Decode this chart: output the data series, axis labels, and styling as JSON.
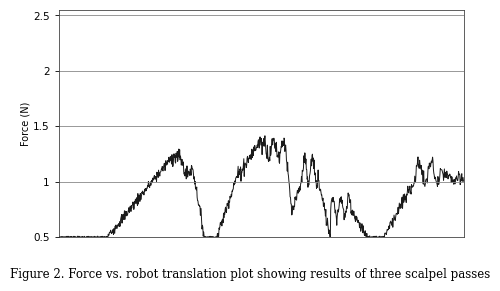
{
  "title": "Figure 2. Force vs. robot translation plot showing results of three scalpel passes",
  "ylabel": "Force (N)",
  "ylim": [
    0.5,
    2.55
  ],
  "yticks": [
    0.5,
    1.0,
    1.5,
    2.0,
    2.5
  ],
  "ytick_labels": [
    "0.5",
    "1",
    "1.5",
    "2",
    "2.5"
  ],
  "top_label": "2.5",
  "line_color": "#1a1a1a",
  "line_width": 0.7,
  "background_color": "#ffffff",
  "grid_color": "#888888",
  "caption_fontsize": 8.5,
  "ylabel_fontsize": 7,
  "tick_fontsize": 7.5
}
